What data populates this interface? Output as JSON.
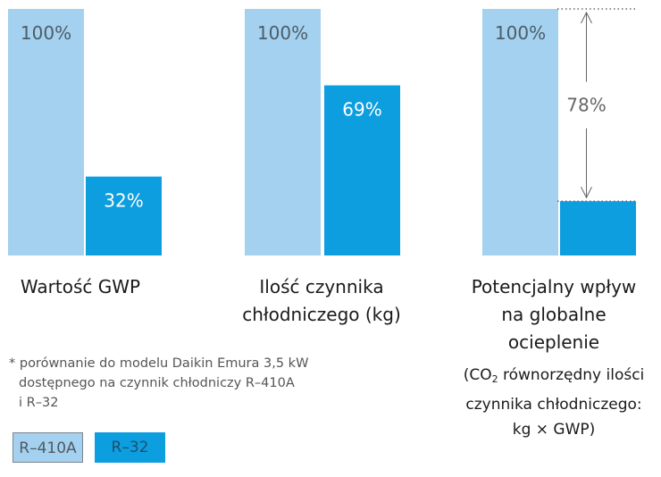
{
  "colors": {
    "r410a": "#a3d1ef",
    "r32": "#0d9ee0",
    "label_on_r410a": "#4d5d68",
    "label_on_r32": "#ffffff",
    "annotation": "#666666"
  },
  "chart_data": {
    "type": "bar",
    "title": "",
    "ylim": [
      0,
      100
    ],
    "grid": false,
    "legend_placement": "bottom-left",
    "categories": [
      "Wartość GWP",
      "Ilość czynnika chłodniczego (kg)",
      "Potencjalny wpływ na globalne ocieplenie"
    ],
    "series": [
      {
        "name": "R–410A",
        "values": [
          100,
          100,
          100
        ],
        "labels": [
          "100%",
          "100%",
          "100%"
        ]
      },
      {
        "name": "R–32",
        "values": [
          32,
          69,
          22
        ],
        "labels": [
          "32%",
          "69%",
          ""
        ]
      }
    ],
    "annotations": [
      {
        "category_index": 2,
        "type": "difference-arrow",
        "from": 22,
        "to": 100,
        "text": "78%"
      }
    ]
  },
  "captions": {
    "gwp": {
      "lines": [
        "Wartość GWP"
      ]
    },
    "ilosc": {
      "lines": [
        "Ilość czynnika",
        "chłodniczego (kg)"
      ]
    },
    "potencjalny": {
      "lines": [
        "Potencjalny wpływ",
        "na globalne",
        "ocieplenie"
      ]
    }
  },
  "co2_note": {
    "pre": "(CO",
    "sub": "2",
    "line1_rest": " równorzędny ilości",
    "line2": "czynnika chłodniczego:",
    "line3": "kg × GWP)"
  },
  "footnote": {
    "line1": "* porównanie do modelu Daikin Emura 3,5 kW",
    "line2": "dostępnego na czynnik chłodniczy R–410A",
    "line3": "i R–32"
  },
  "legend": {
    "r410a": "R–410A",
    "r32": "R–32"
  }
}
